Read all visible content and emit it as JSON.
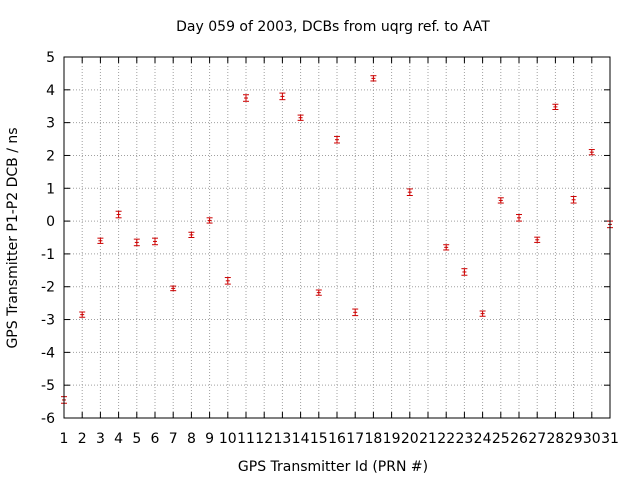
{
  "chart_data": {
    "type": "scatter",
    "title": "Day 059 of 2003, DCBs from uqrg ref. to AAT",
    "xlabel": "GPS Transmitter Id (PRN #)",
    "ylabel": "GPS Transmitter P1-P2 DCB / ns",
    "xlim": [
      1,
      31
    ],
    "ylim": [
      -6,
      5
    ],
    "x_ticks": [
      1,
      2,
      3,
      4,
      5,
      6,
      7,
      8,
      9,
      10,
      11,
      12,
      13,
      14,
      15,
      16,
      17,
      18,
      19,
      20,
      21,
      22,
      23,
      24,
      25,
      26,
      27,
      28,
      29,
      30,
      31
    ],
    "y_ticks": [
      -6,
      -5,
      -4,
      -3,
      -2,
      -1,
      0,
      1,
      2,
      3,
      4,
      5
    ],
    "grid": true,
    "legend": "none",
    "marker": "error bars",
    "color": "#cc0000",
    "series": [
      {
        "points": [
          {
            "x": 1,
            "y": -5.45,
            "err": 0.1
          },
          {
            "x": 2,
            "y": -2.85,
            "err": 0.08
          },
          {
            "x": 3,
            "y": -0.6,
            "err": 0.08
          },
          {
            "x": 4,
            "y": 0.2,
            "err": 0.1
          },
          {
            "x": 5,
            "y": -0.65,
            "err": 0.1
          },
          {
            "x": 6,
            "y": -0.62,
            "err": 0.1
          },
          {
            "x": 7,
            "y": -2.05,
            "err": 0.07
          },
          {
            "x": 8,
            "y": -0.42,
            "err": 0.08
          },
          {
            "x": 9,
            "y": 0.02,
            "err": 0.08
          },
          {
            "x": 10,
            "y": -1.82,
            "err": 0.1
          },
          {
            "x": 11,
            "y": 3.75,
            "err": 0.1
          },
          {
            "x": 13,
            "y": 3.8,
            "err": 0.1
          },
          {
            "x": 14,
            "y": 3.15,
            "err": 0.08
          },
          {
            "x": 15,
            "y": -2.18,
            "err": 0.08
          },
          {
            "x": 16,
            "y": 2.48,
            "err": 0.1
          },
          {
            "x": 17,
            "y": -2.78,
            "err": 0.1
          },
          {
            "x": 18,
            "y": 4.35,
            "err": 0.08
          },
          {
            "x": 20,
            "y": 0.88,
            "err": 0.1
          },
          {
            "x": 22,
            "y": -0.8,
            "err": 0.08
          },
          {
            "x": 23,
            "y": -1.55,
            "err": 0.1
          },
          {
            "x": 24,
            "y": -2.82,
            "err": 0.08
          },
          {
            "x": 25,
            "y": 0.63,
            "err": 0.08
          },
          {
            "x": 26,
            "y": 0.1,
            "err": 0.1
          },
          {
            "x": 27,
            "y": -0.57,
            "err": 0.08
          },
          {
            "x": 28,
            "y": 3.48,
            "err": 0.08
          },
          {
            "x": 29,
            "y": 0.65,
            "err": 0.1
          },
          {
            "x": 30,
            "y": 2.1,
            "err": 0.08
          },
          {
            "x": 31,
            "y": -0.1,
            "err": 0.1
          }
        ]
      }
    ]
  }
}
